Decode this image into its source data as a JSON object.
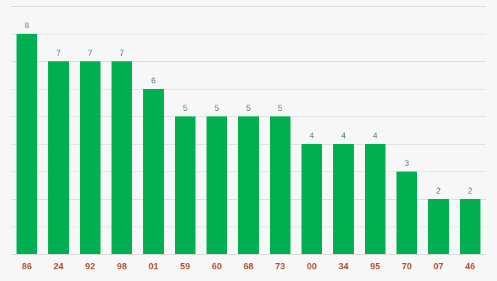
{
  "chart_data": {
    "type": "bar",
    "title": "",
    "xlabel": "",
    "ylabel": "",
    "categories": [
      "86",
      "24",
      "92",
      "98",
      "01",
      "59",
      "60",
      "68",
      "73",
      "00",
      "34",
      "95",
      "70",
      "07",
      "46"
    ],
    "values": [
      8,
      7,
      7,
      7,
      6,
      5,
      5,
      5,
      5,
      4,
      4,
      4,
      3,
      2,
      2
    ],
    "ylim": [
      0,
      9
    ],
    "grid": true,
    "legend": "none",
    "bar_color": "#00b050",
    "value_label_color": "#4a7a8c",
    "category_label_color": "#a5502d"
  }
}
